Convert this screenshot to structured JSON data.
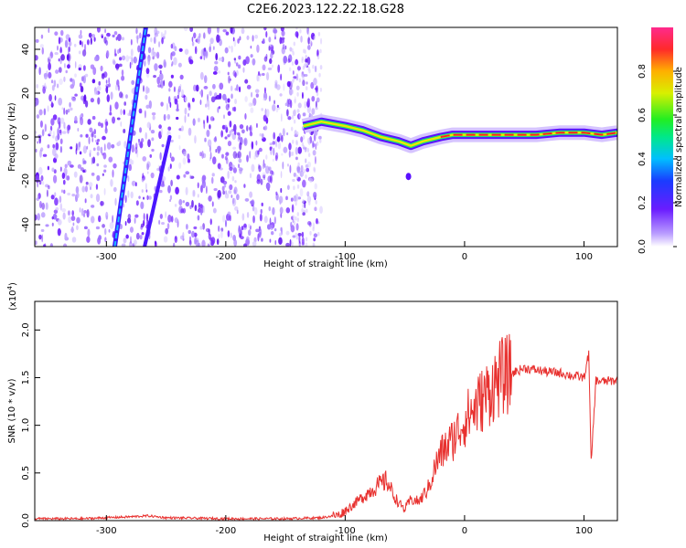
{
  "page": {
    "title": "C2E6.2023.122.22.18.G28"
  },
  "colors": {
    "snr_line": "#e8312f",
    "spectro_low": "#b897ff",
    "spectro_mid": "#6a16ff",
    "track_diag": "#1f9fff"
  },
  "chart_data": [
    {
      "type": "heatmap",
      "title": "C2E6.2023.122.22.18.G28",
      "xlabel": "Height of straight line (km)",
      "ylabel": "Frequency (Hz)",
      "xlim": [
        -360,
        128
      ],
      "ylim": [
        -50,
        50
      ],
      "xticks": [
        -300,
        -200,
        -100,
        0,
        100
      ],
      "yticks": [
        -40,
        -20,
        0,
        20,
        40
      ],
      "colorbar": {
        "label": "Normalized spectral amplitude",
        "range": [
          0.0,
          1.0
        ],
        "ticks": [
          "0.0",
          "0.2",
          "0.4",
          "0.6",
          "0.8"
        ],
        "colormap": "rainbow"
      },
      "features": [
        {
          "kind": "noise-field",
          "x_range": [
            -360,
            -120
          ],
          "y_range": [
            -50,
            50
          ]
        },
        {
          "kind": "diagonal-track",
          "points": [
            [
              -293,
              -50
            ],
            [
              -267,
              50
            ]
          ]
        },
        {
          "kind": "diagonal-track",
          "points": [
            [
              -268,
              -50
            ],
            [
              -247,
              0
            ]
          ]
        },
        {
          "kind": "doppler-trace",
          "x": [
            -135,
            -120,
            -100,
            -85,
            -70,
            -55,
            -45,
            -35,
            -20,
            -10,
            0,
            20,
            40,
            60,
            80,
            100,
            115,
            128
          ],
          "y": [
            5,
            7,
            5,
            3,
            0,
            -2,
            -4,
            -2,
            0,
            1,
            1,
            1,
            1,
            1,
            2,
            2,
            1,
            2
          ]
        }
      ],
      "grid": false
    },
    {
      "type": "line",
      "xlabel": "Height of straight line (km)",
      "ylabel": "SNR (10 * v/v)",
      "scale_label": "(x10",
      "scale_exp": "4",
      "scale_close": ")",
      "xlim": [
        -360,
        128
      ],
      "ylim": [
        0.0,
        2.3
      ],
      "xticks": [
        -300,
        -200,
        -100,
        0,
        100
      ],
      "yticks": [
        "0.0",
        "0.5",
        "1.0",
        "1.5",
        "2.0"
      ],
      "series": [
        {
          "x": [
            -360,
            -320,
            -280,
            -265,
            -250,
            -200,
            -150,
            -120,
            -105,
            -95,
            -85,
            -75,
            -65,
            -60,
            -55,
            -50,
            -45,
            -38,
            -30,
            -25,
            -20,
            -10,
            0,
            10,
            20,
            30,
            40,
            50,
            60,
            70,
            80,
            90,
            100,
            104,
            106,
            110,
            115,
            128
          ],
          "y": [
            0.02,
            0.02,
            0.04,
            0.05,
            0.03,
            0.02,
            0.02,
            0.03,
            0.06,
            0.15,
            0.25,
            0.35,
            0.42,
            0.28,
            0.18,
            0.12,
            0.22,
            0.2,
            0.35,
            0.55,
            0.7,
            0.85,
            1.05,
            1.2,
            1.35,
            1.5,
            1.55,
            1.6,
            1.58,
            1.56,
            1.55,
            1.52,
            1.5,
            1.75,
            0.6,
            1.47,
            1.46,
            1.47
          ]
        }
      ],
      "grid": false
    }
  ]
}
